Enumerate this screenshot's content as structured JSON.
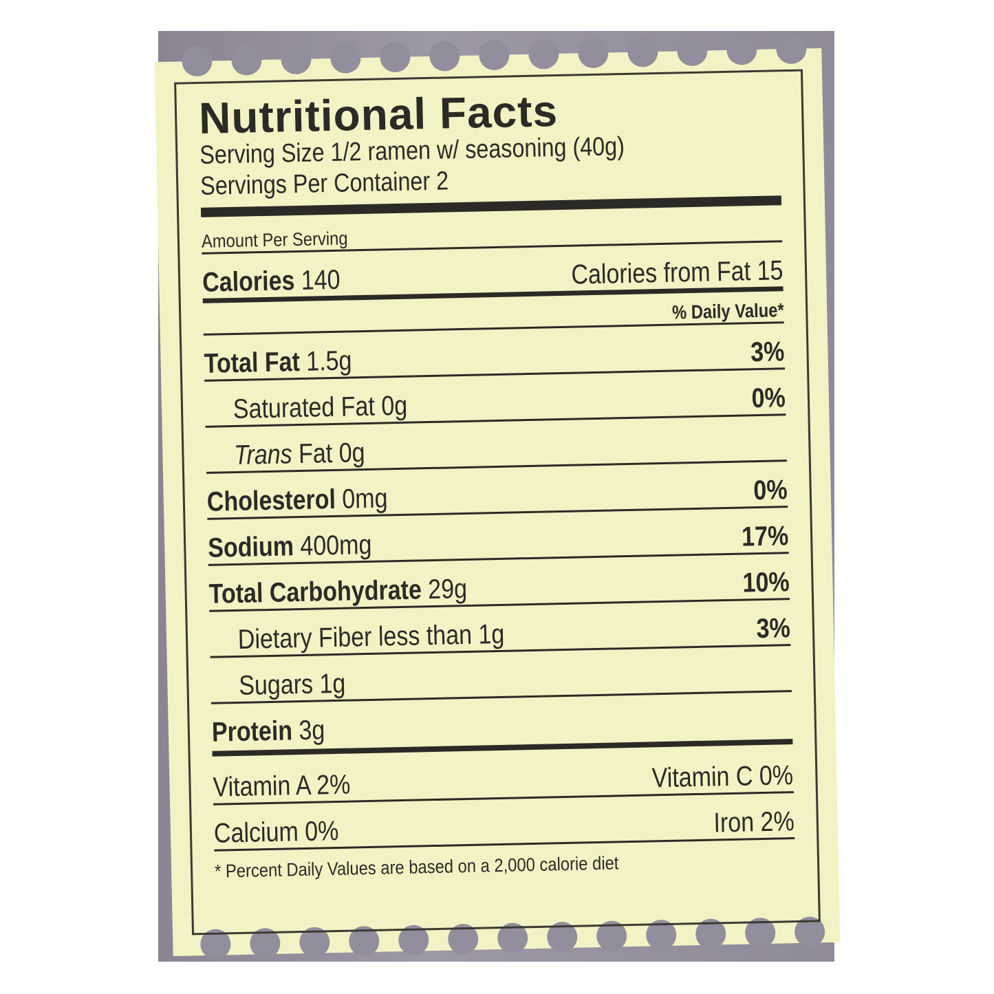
{
  "label": {
    "title": "Nutritional Facts",
    "serving_size": "Serving Size 1/2 ramen w/ seasoning (40g)",
    "servings_per_container": "Servings Per Container 2",
    "amount_per_serving": "Amount Per Serving",
    "calories_label": "Calories",
    "calories_value": "140",
    "calories_from_fat": "Calories from Fat 15",
    "daily_value_header": "% Daily Value*",
    "nutrients": [
      {
        "name": "Total Fat",
        "amount": "1.5g",
        "dv": "3%"
      },
      {
        "name": "Saturated Fat",
        "amount": "0g",
        "dv": "0%"
      },
      {
        "name": "Trans",
        "amount": "Fat 0g",
        "dv": ""
      },
      {
        "name": "Cholesterol",
        "amount": "0mg",
        "dv": "0%"
      },
      {
        "name": "Sodium",
        "amount": "400mg",
        "dv": "17%"
      },
      {
        "name": "Total Carbohydrate",
        "amount": "29g",
        "dv": "10%"
      },
      {
        "name": "Dietary Fiber",
        "amount": "less than 1g",
        "dv": "3%"
      },
      {
        "name": "Sugars",
        "amount": "1g",
        "dv": ""
      },
      {
        "name": "Protein",
        "amount": "3g",
        "dv": ""
      }
    ],
    "vitamin_a": "Vitamin A 2%",
    "vitamin_c": "Vitamin C 0%",
    "calcium": "Calcium 0%",
    "iron": "Iron 2%",
    "footnote": "* Percent Daily Values are based on a 2,000 calorie diet"
  },
  "colors": {
    "label": "#f3f2c4",
    "ink": "#2b2a26",
    "background": "#8f8a99"
  }
}
